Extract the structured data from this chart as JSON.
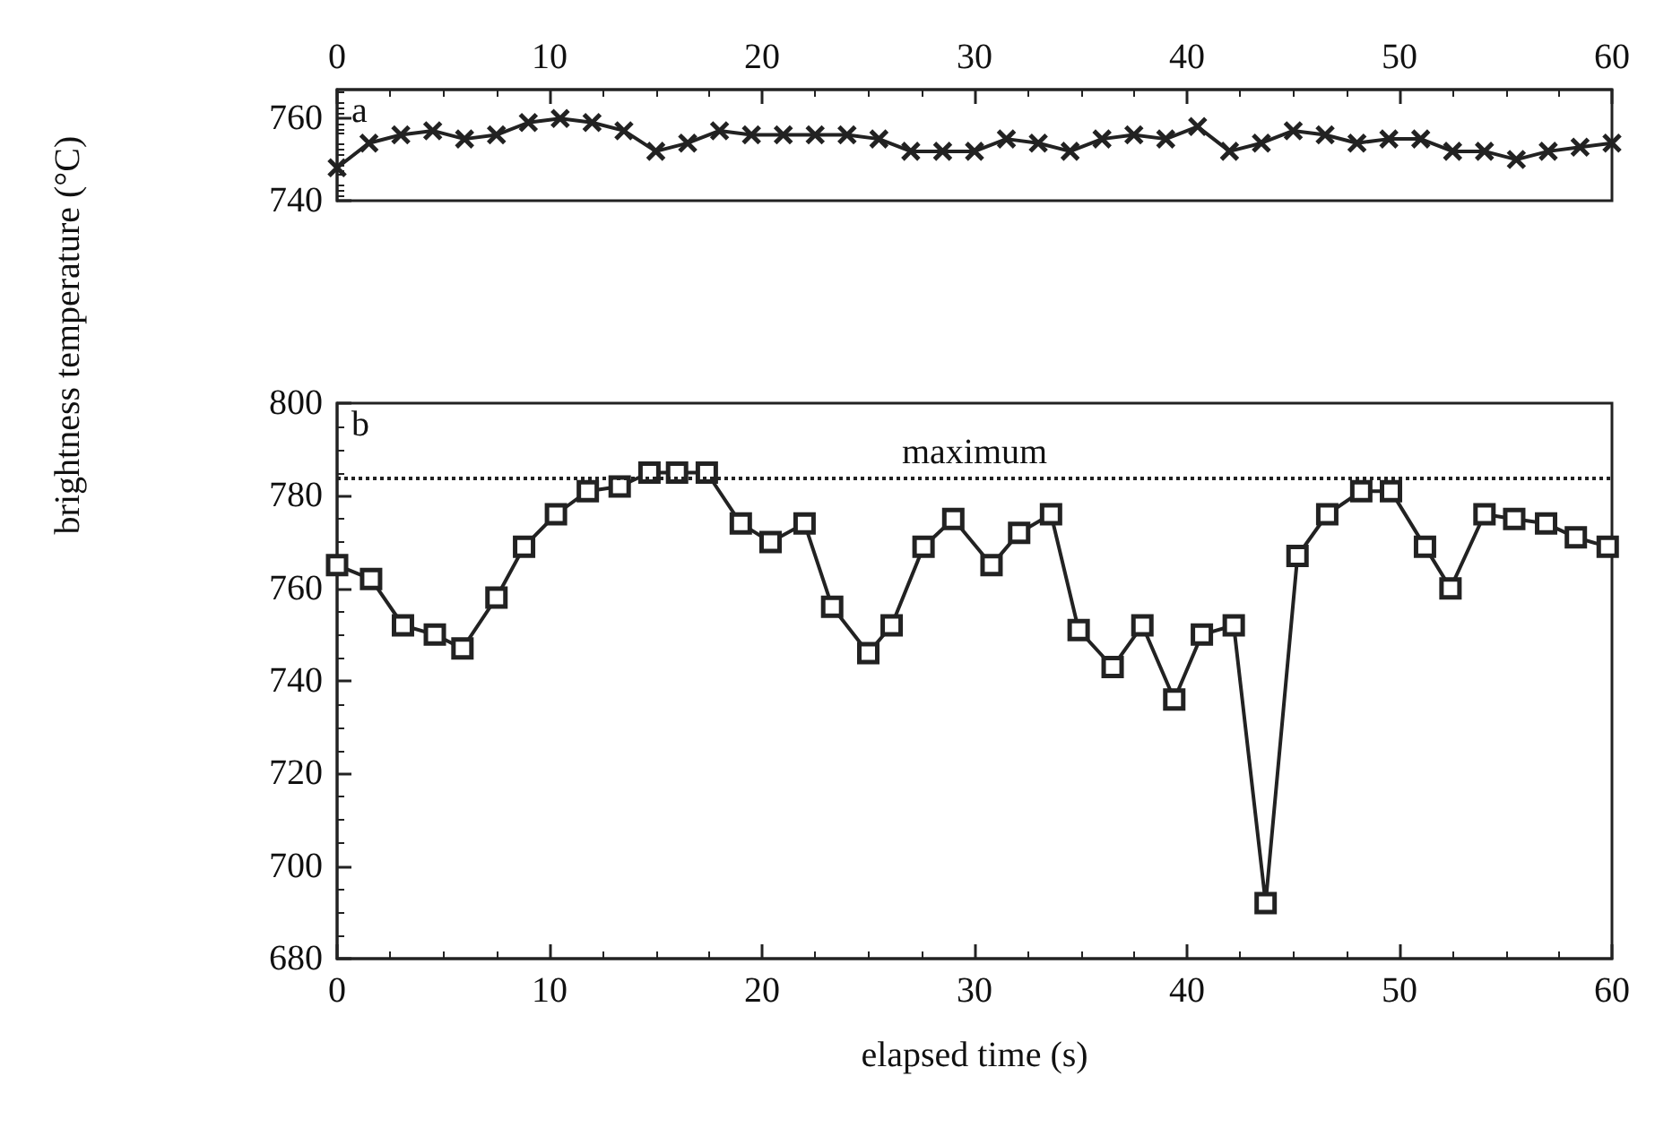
{
  "chart_data": [
    {
      "type": "line",
      "annotations": [
        "a"
      ],
      "xlim": [
        0,
        60
      ],
      "xticks": [
        0,
        10,
        20,
        30,
        40,
        50,
        60
      ],
      "ylim": [
        740,
        767
      ],
      "yticks": [
        740,
        760
      ],
      "grid": false,
      "marker": "cross",
      "line_style": "solid",
      "x": [
        0,
        1.5,
        3,
        4.5,
        6,
        7.5,
        9,
        10.5,
        12,
        13.5,
        15,
        16.5,
        18,
        19.5,
        21,
        22.5,
        24,
        25.5,
        27,
        28.5,
        30,
        31.5,
        33,
        34.5,
        36,
        37.5,
        39,
        40.5,
        42,
        43.5,
        45,
        46.5,
        48,
        49.5,
        51,
        52.5,
        54,
        55.5,
        57,
        58.5,
        60
      ],
      "series": [
        {
          "color": "#222222",
          "values": [
            748,
            754,
            756,
            757,
            755,
            756,
            759,
            760,
            759,
            757,
            752,
            754,
            757,
            756,
            756,
            756,
            756,
            755,
            752,
            752,
            752,
            755,
            754,
            752,
            755,
            756,
            755,
            758,
            752,
            754,
            757,
            756,
            754,
            755,
            755,
            752,
            752,
            750,
            752,
            753,
            754
          ]
        }
      ]
    },
    {
      "type": "line",
      "annotations": [
        "b"
      ],
      "xlabel": "elapsed time (s)",
      "ylabel": "brightness temperature (°C)",
      "xlim": [
        0,
        60
      ],
      "xticks": [
        0,
        10,
        20,
        30,
        40,
        50,
        60
      ],
      "ylim": [
        680,
        800
      ],
      "yticks": [
        680,
        700,
        720,
        740,
        760,
        780,
        800
      ],
      "grid": false,
      "marker": "square",
      "line_style": "solid",
      "ref_lines": [
        {
          "axis": "y",
          "value": 784,
          "label": "maximum",
          "color": "#222222",
          "line_style": "dotted"
        }
      ],
      "x": [
        0,
        1.6,
        3.1,
        4.6,
        5.9,
        7.5,
        8.8,
        10.3,
        11.8,
        13.3,
        14.7,
        16.0,
        17.4,
        19.0,
        20.4,
        22.0,
        23.3,
        25.0,
        26.1,
        27.6,
        29.0,
        30.8,
        32.1,
        33.6,
        34.9,
        36.5,
        37.9,
        39.4,
        40.7,
        42.2,
        43.7,
        45.2,
        46.6,
        48.2,
        49.6,
        51.2,
        52.4,
        54.0,
        55.4,
        56.9,
        58.3,
        59.8
      ],
      "series": [
        {
          "color": "#222222",
          "values": [
            765,
            762,
            752,
            750,
            747,
            758,
            769,
            776,
            781,
            782,
            785,
            785,
            785,
            774,
            770,
            774,
            756,
            746,
            752,
            769,
            775,
            765,
            772,
            776,
            751,
            743,
            752,
            736,
            750,
            752,
            692,
            767,
            776,
            781,
            781,
            769,
            760,
            776,
            775,
            774,
            771,
            769
          ]
        }
      ]
    }
  ]
}
